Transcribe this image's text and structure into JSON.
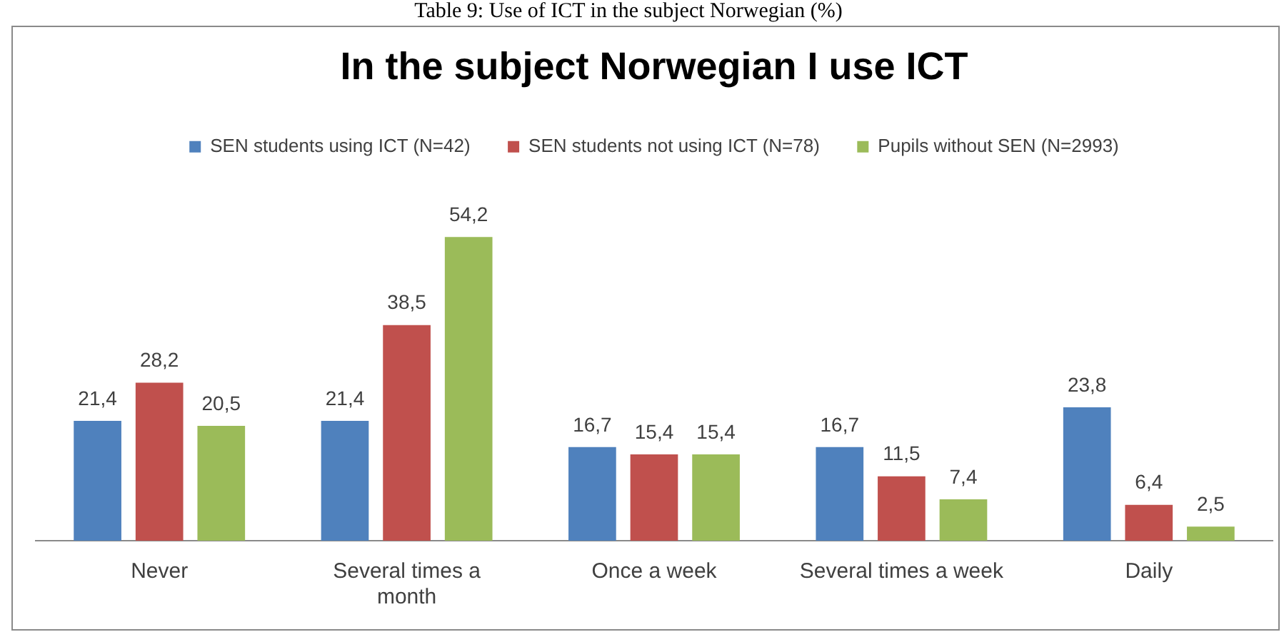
{
  "chart_data": {
    "type": "bar",
    "title": "In the subject Norwegian I use ICT",
    "annotations": [
      "Table 9: Use of ICT in the subject Norwegian (%)"
    ],
    "categories": [
      "Never",
      "Several times a month",
      "Once a week",
      "Several times a week",
      "Daily"
    ],
    "series": [
      {
        "name": "SEN students using ICT (N=42)",
        "color": "#4f81bd",
        "values": [
          21.4,
          21.4,
          16.7,
          16.7,
          23.8
        ],
        "value_labels": [
          "21,4",
          "21,4",
          "16,7",
          "16,7",
          "23,8"
        ]
      },
      {
        "name": "SEN students not using ICT (N=78)",
        "color": "#c0504d",
        "values": [
          28.2,
          38.5,
          15.4,
          11.5,
          6.4
        ],
        "value_labels": [
          "28,2",
          "38,5",
          "15,4",
          "11,5",
          "6,4"
        ]
      },
      {
        "name": "Pupils without SEN (N=2993)",
        "color": "#9bbb59",
        "values": [
          20.5,
          54.2,
          15.4,
          7.4,
          2.5
        ],
        "value_labels": [
          "20,5",
          "54,2",
          "15,4",
          "7,4",
          "2,5"
        ]
      }
    ],
    "tick_labels": "x",
    "legend": "top"
  }
}
